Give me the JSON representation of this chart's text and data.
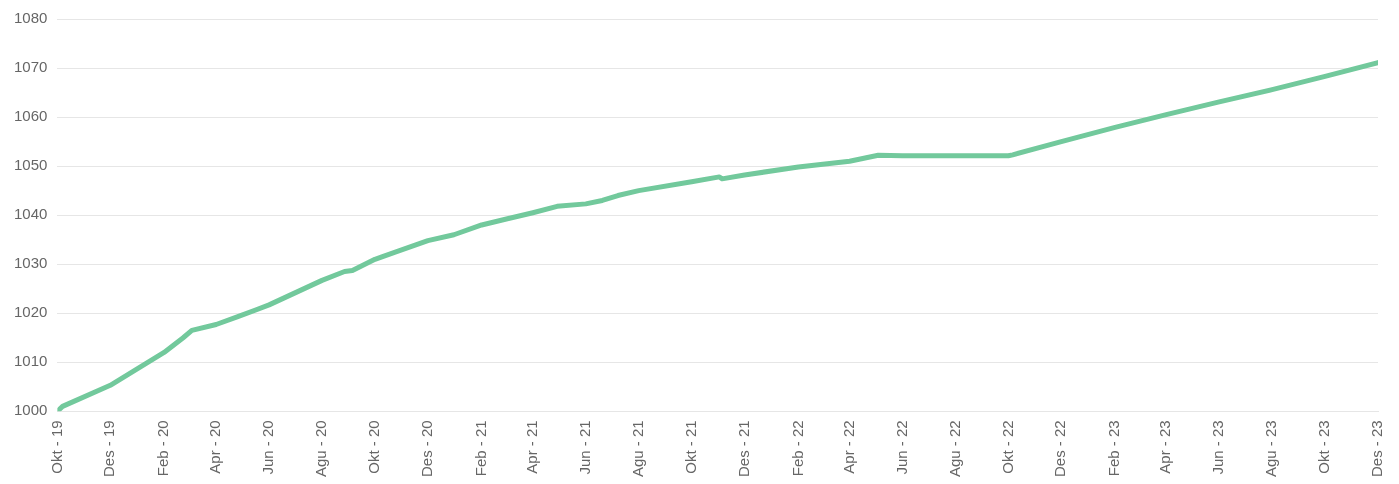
{
  "chart_data": {
    "type": "line",
    "x": [
      "2019-10-01",
      "2019-10-07",
      "2019-12-01",
      "2020-02-01",
      "2020-02-23",
      "2020-03-04",
      "2020-04-01",
      "2020-04-26",
      "2020-06-01",
      "2020-08-01",
      "2020-08-27",
      "2020-09-05",
      "2020-10-01",
      "2020-12-01",
      "2020-12-31",
      "2021-02-01",
      "2021-04-01",
      "2021-04-29",
      "2021-06-01",
      "2021-06-20",
      "2021-07-08",
      "2021-08-01",
      "2021-10-01",
      "2021-11-02",
      "2021-11-05",
      "2021-12-01",
      "2022-02-01",
      "2022-04-01",
      "2022-05-04",
      "2022-06-01",
      "2022-10-01",
      "2022-10-06",
      "2022-12-01",
      "2023-02-01",
      "2023-04-01",
      "2023-06-01",
      "2023-08-01",
      "2023-10-01",
      "2023-12-01"
    ],
    "series": [
      {
        "color": "#72c99c",
        "values": [
          1000,
          1001,
          1005.3,
          1012,
          1015,
          1016.5,
          1017.7,
          1019.3,
          1021.7,
          1026.7,
          1028.5,
          1028.7,
          1031,
          1034.8,
          1036,
          1038,
          1040.5,
          1041.8,
          1042.3,
          1043,
          1044,
          1045,
          1046.8,
          1047.8,
          1047.4,
          1048.2,
          1049.8,
          1051,
          1052.2,
          1052.1,
          1052.1,
          1052.3,
          1055,
          1057.9,
          1060.5,
          1063.1,
          1065.6,
          1068.3,
          1071.1
        ]
      }
    ],
    "xlim": [
      "2019-10-01",
      "2023-12-01"
    ],
    "xticks": [
      {
        "value": "2019-10-01",
        "label": "Okt - 19"
      },
      {
        "value": "2019-12-01",
        "label": "Des - 19"
      },
      {
        "value": "2020-02-01",
        "label": "Feb - 20"
      },
      {
        "value": "2020-04-01",
        "label": "Apr - 20"
      },
      {
        "value": "2020-06-01",
        "label": "Jun - 20"
      },
      {
        "value": "2020-08-01",
        "label": "Agu - 20"
      },
      {
        "value": "2020-10-01",
        "label": "Okt - 20"
      },
      {
        "value": "2020-12-01",
        "label": "Des - 20"
      },
      {
        "value": "2021-02-01",
        "label": "Feb - 21"
      },
      {
        "value": "2021-04-01",
        "label": "Apr - 21"
      },
      {
        "value": "2021-06-01",
        "label": "Jun - 21"
      },
      {
        "value": "2021-08-01",
        "label": "Agu - 21"
      },
      {
        "value": "2021-10-01",
        "label": "Okt - 21"
      },
      {
        "value": "2021-12-01",
        "label": "Des - 21"
      },
      {
        "value": "2022-02-01",
        "label": "Feb - 22"
      },
      {
        "value": "2022-04-01",
        "label": "Apr - 22"
      },
      {
        "value": "2022-06-01",
        "label": "Jun - 22"
      },
      {
        "value": "2022-08-01",
        "label": "Agu - 22"
      },
      {
        "value": "2022-10-01",
        "label": "Okt - 22"
      },
      {
        "value": "2022-12-01",
        "label": "Des - 22"
      },
      {
        "value": "2023-02-01",
        "label": "Feb - 23"
      },
      {
        "value": "2023-04-01",
        "label": "Apr - 23"
      },
      {
        "value": "2023-06-01",
        "label": "Jun - 23"
      },
      {
        "value": "2023-08-01",
        "label": "Agu - 23"
      },
      {
        "value": "2023-10-01",
        "label": "Okt - 23"
      },
      {
        "value": "2023-12-01",
        "label": "Des - 23"
      }
    ],
    "ylim": [
      1000,
      1080
    ],
    "yticks": [
      1000,
      1010,
      1020,
      1030,
      1040,
      1050,
      1060,
      1070,
      1080
    ],
    "grid": "y",
    "marker": "none",
    "line_style": "solid"
  }
}
